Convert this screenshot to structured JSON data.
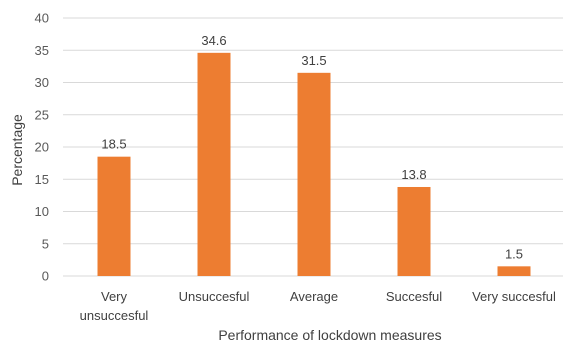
{
  "chart_data": {
    "type": "bar",
    "categories": [
      [
        "Very",
        "unsuccesful"
      ],
      [
        "Unsuccesful"
      ],
      [
        "Average"
      ],
      [
        "Succesful"
      ],
      [
        "Very succesful"
      ]
    ],
    "values": [
      18.5,
      34.6,
      31.5,
      13.8,
      1.5
    ],
    "data_labels": [
      "18.5",
      "34.6",
      "31.5",
      "13.8",
      "1.5"
    ],
    "xlabel": "Performance of lockdown measures",
    "ylabel": "Percentage",
    "ylim": [
      0,
      40
    ],
    "yticks": [
      0,
      5,
      10,
      15,
      20,
      25,
      30,
      35,
      40
    ],
    "grid": true,
    "bar_color": "#ed7d31"
  }
}
